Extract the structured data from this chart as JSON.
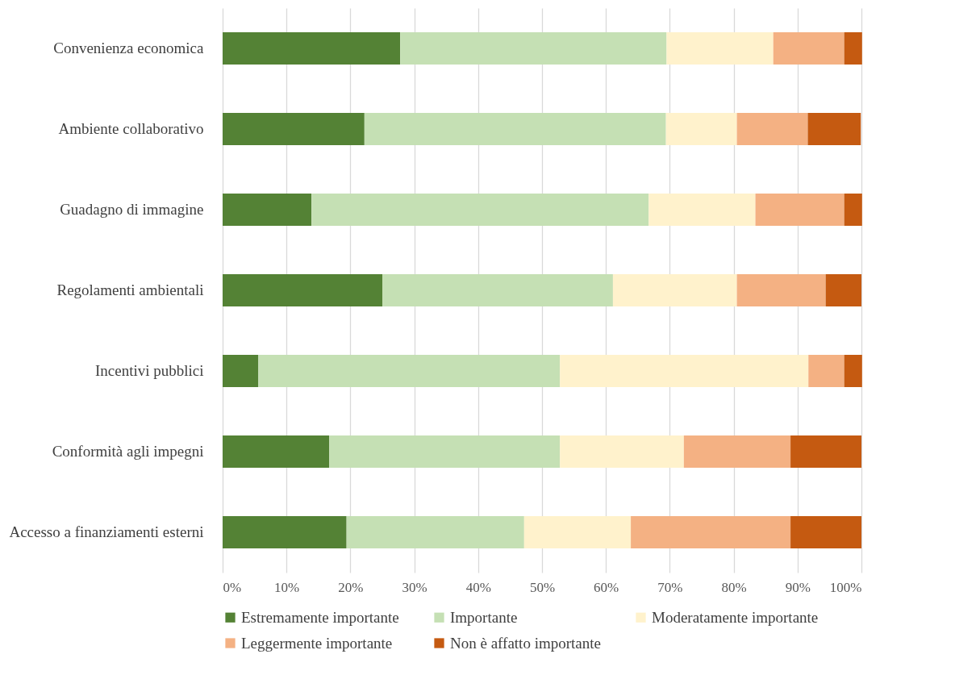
{
  "chart_data": {
    "type": "bar",
    "orientation": "horizontal",
    "stacked": true,
    "categories": [
      "Convenienza economica",
      "Ambiente collaborativo",
      "Guadagno di immagine",
      "Regolamenti ambientali",
      "Incentivi pubblici",
      "Conformità agli impegni",
      "Accesso a finanziamenti esterni"
    ],
    "series": [
      {
        "name": "Estremamente importante",
        "color": "#548235",
        "values": [
          27.8,
          22.2,
          13.9,
          25.0,
          5.6,
          16.7,
          19.4
        ]
      },
      {
        "name": "Importante",
        "color": "#c5e0b4",
        "values": [
          41.7,
          47.2,
          52.8,
          36.1,
          47.2,
          36.1,
          27.8
        ]
      },
      {
        "name": "Moderatamente importante",
        "color": "#fff2cc",
        "values": [
          16.7,
          11.1,
          16.7,
          19.4,
          38.9,
          19.4,
          16.7
        ]
      },
      {
        "name": "Leggermente importante",
        "color": "#f4b183",
        "values": [
          11.1,
          11.1,
          13.9,
          13.9,
          5.6,
          16.7,
          25.0
        ]
      },
      {
        "name": "Non è affatto importante",
        "color": "#c55a11",
        "values": [
          2.8,
          8.3,
          2.8,
          5.6,
          2.8,
          11.1,
          11.1
        ]
      }
    ],
    "xlim": [
      0,
      100
    ],
    "xticks": [
      {
        "value": 0,
        "label": "0%"
      },
      {
        "value": 10,
        "label": "10%"
      },
      {
        "value": 20,
        "label": "20%"
      },
      {
        "value": 30,
        "label": "30%"
      },
      {
        "value": 40,
        "label": "40%"
      },
      {
        "value": 50,
        "label": "50%"
      },
      {
        "value": 60,
        "label": "60%"
      },
      {
        "value": 70,
        "label": "70%"
      },
      {
        "value": 80,
        "label": "80%"
      },
      {
        "value": 90,
        "label": "90%"
      },
      {
        "value": 100,
        "label": "100%"
      }
    ],
    "grid": "x",
    "legend": "bottom"
  }
}
